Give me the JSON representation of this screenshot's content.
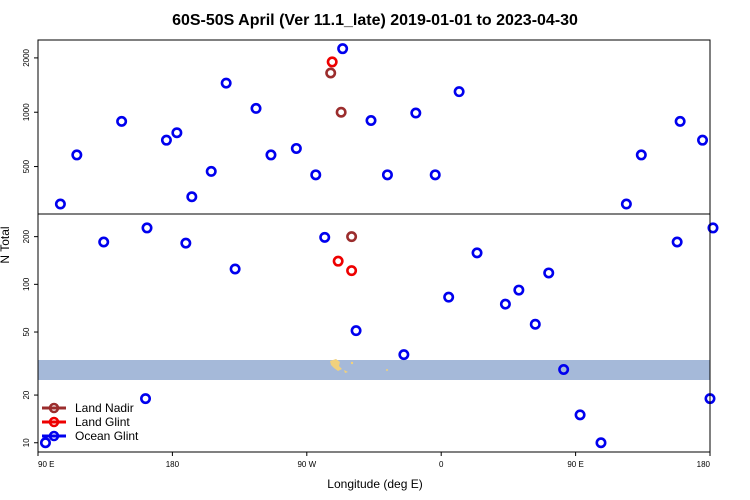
{
  "colors": {
    "land_nadir": "#9b2d2d",
    "land_glint": "#ee0000",
    "ocean_glint": "#0000ee",
    "map_water": "#a5b9d9",
    "map_land": "#f1d17c"
  },
  "chart_data": {
    "type": "scatter",
    "title": "60S-50S April (Ver 11.1_late)   2019-01-01 to 2023-04-30",
    "xlabel": "Longitude (deg E)",
    "ylabel": "N Total",
    "x_ticks": [
      "90 E",
      "180",
      "90 W",
      "0",
      "90 E",
      "180"
    ],
    "x_tick_values": [
      90,
      180,
      270,
      360,
      450,
      540
    ],
    "xlim": [
      90,
      540
    ],
    "log_scale_y": true,
    "grid": false,
    "legend_position": "bottom-left",
    "panels": [
      {
        "name": "upper",
        "ylim": [
          280,
          2450
        ],
        "y_ticks": [
          {
            "value": 500,
            "label": "500"
          },
          {
            "value": 1000,
            "label": "1000"
          },
          {
            "value": 2000,
            "label": "2000"
          }
        ],
        "series": [
          {
            "name": "Land Nadir",
            "color_key": "land_nadir",
            "points": [
              [
                286,
                1650
              ],
              [
                293,
                1000
              ]
            ]
          },
          {
            "name": "Land Glint",
            "color_key": "land_glint",
            "points": [
              [
                287,
                1900
              ]
            ]
          },
          {
            "name": "Ocean Glint",
            "color_key": "ocean_glint",
            "points": [
              [
                105,
                310
              ],
              [
                116,
                580
              ],
              [
                146,
                890
              ],
              [
                176,
                700
              ],
              [
                183,
                770
              ],
              [
                193,
                340
              ],
              [
                206,
                470
              ],
              [
                216,
                1450
              ],
              [
                236,
                1050
              ],
              [
                246,
                580
              ],
              [
                263,
                630
              ],
              [
                276,
                450
              ],
              [
                294,
                2250
              ],
              [
                313,
                900
              ],
              [
                324,
                450
              ],
              [
                343,
                990
              ],
              [
                356,
                450
              ],
              [
                372,
                1300
              ],
              [
                484,
                310
              ],
              [
                494,
                580
              ],
              [
                520,
                890
              ],
              [
                535,
                700
              ]
            ]
          }
        ]
      },
      {
        "name": "lower",
        "ylim": [
          9,
          270
        ],
        "y_ticks": [
          {
            "value": 10,
            "label": "10"
          },
          {
            "value": 20,
            "label": "20"
          },
          {
            "value": 50,
            "label": "50"
          },
          {
            "value": 100,
            "label": "100"
          },
          {
            "value": 200,
            "label": "200"
          }
        ],
        "series": [
          {
            "name": "Land Nadir",
            "color_key": "land_nadir",
            "points": [
              [
                300,
                200
              ]
            ]
          },
          {
            "name": "Land Glint",
            "color_key": "land_glint",
            "points": [
              [
                291,
                140
              ],
              [
                300,
                122
              ]
            ]
          },
          {
            "name": "Ocean Glint",
            "color_key": "ocean_glint",
            "points": [
              [
                95,
                10
              ],
              [
                134,
                185
              ],
              [
                162,
                19
              ],
              [
                163,
                227
              ],
              [
                189,
                182
              ],
              [
                222,
                125
              ],
              [
                282,
                198
              ],
              [
                303,
                51
              ],
              [
                335,
                36
              ],
              [
                365,
                83
              ],
              [
                384,
                158
              ],
              [
                403,
                75
              ],
              [
                412,
                92
              ],
              [
                423,
                56
              ],
              [
                432,
                118
              ],
              [
                442,
                29
              ],
              [
                453,
                15
              ],
              [
                467,
                10
              ],
              [
                518,
                185
              ],
              [
                540,
                19
              ],
              [
                542,
                227
              ]
            ]
          }
        ]
      }
    ],
    "legend": [
      "Land Nadir",
      "Land Glint",
      "Ocean Glint"
    ]
  }
}
